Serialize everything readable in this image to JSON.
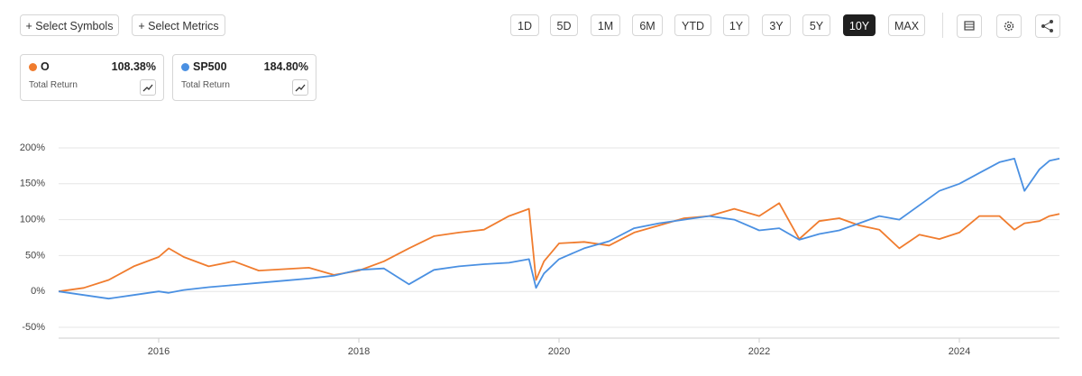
{
  "toolbar": {
    "buttons": [
      "+ Select Symbols",
      "+ Select Metrics"
    ],
    "ranges": [
      "1D",
      "5D",
      "1M",
      "6M",
      "YTD",
      "1Y",
      "3Y",
      "5Y",
      "10Y",
      "MAX"
    ],
    "active_range": "10Y"
  },
  "cards": [
    {
      "return": "108.38%",
      "metric": "Total Return"
    },
    {
      "return": "184.80%",
      "metric": "Total Return"
    }
  ],
  "chart_data": {
    "type": "line",
    "x": [
      2015,
      2015.25,
      2015.5,
      2015.75,
      2016,
      2016.1,
      2016.25,
      2016.5,
      2016.75,
      2017,
      2017.25,
      2017.5,
      2017.75,
      2018,
      2018.25,
      2018.5,
      2018.75,
      2019,
      2019.25,
      2019.5,
      2019.7,
      2019.77,
      2019.85,
      2020,
      2020.25,
      2020.5,
      2020.75,
      2021,
      2021.25,
      2021.5,
      2021.75,
      2022,
      2022.2,
      2022.4,
      2022.6,
      2022.8,
      2023,
      2023.2,
      2023.4,
      2023.6,
      2023.8,
      2024,
      2024.2,
      2024.4,
      2024.55,
      2024.65,
      2024.8,
      2024.9,
      2025
    ],
    "series": [
      {
        "name": "O",
        "color": "#f07c2e",
        "values": [
          0,
          5,
          16,
          35,
          48,
          60,
          48,
          35,
          42,
          29,
          31,
          33,
          23,
          29,
          42,
          60,
          77,
          82,
          86,
          105,
          115,
          16,
          42,
          67,
          69,
          64,
          82,
          92,
          102,
          105,
          115,
          105,
          123,
          73,
          98,
          102,
          92,
          86,
          60,
          79,
          73,
          82,
          105,
          105,
          86,
          95,
          98,
          105,
          108
        ]
      },
      {
        "name": "SP500",
        "color": "#4a90e2",
        "values": [
          0,
          -5,
          -10,
          -5,
          0,
          -2,
          2,
          6,
          9,
          12,
          15,
          18,
          22,
          30,
          32,
          10,
          30,
          35,
          38,
          40,
          45,
          5,
          25,
          45,
          60,
          70,
          88,
          95,
          100,
          105,
          100,
          85,
          88,
          72,
          80,
          85,
          95,
          105,
          100,
          120,
          140,
          150,
          165,
          180,
          185,
          140,
          170,
          182,
          185
        ]
      }
    ],
    "xlim": [
      2015,
      2025
    ],
    "xticks": [
      2016,
      2018,
      2020,
      2022,
      2024
    ],
    "ylim": [
      -65,
      215
    ],
    "yticks": [
      {
        "value": -50,
        "label": "-50%"
      },
      {
        "value": 0,
        "label": "0%"
      },
      {
        "value": 50,
        "label": "50%"
      },
      {
        "value": 100,
        "label": "100%"
      },
      {
        "value": 150,
        "label": "150%"
      },
      {
        "value": 200,
        "label": "200%"
      }
    ],
    "grid": true
  }
}
